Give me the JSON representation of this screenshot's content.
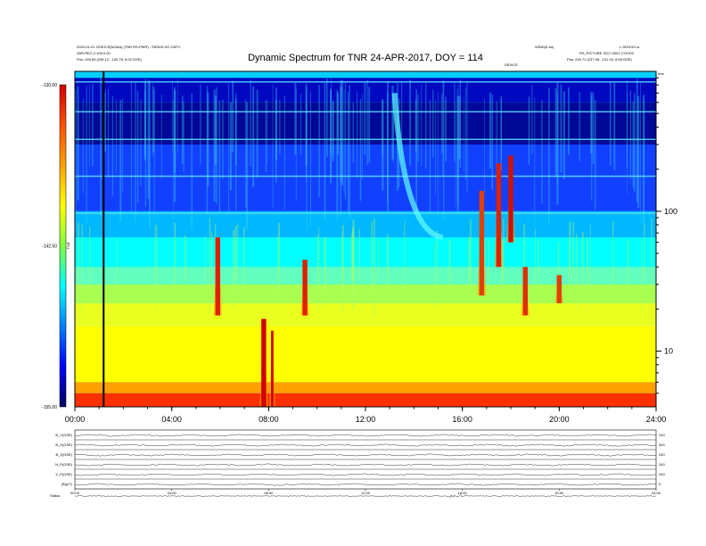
{
  "header": {
    "top_left_1": "2020-01-01 GOES-R(NOAA) (TNR RS-PWR) - SIRIUS.HC.GSFC",
    "top_left_2": "VAR-REC-2 v09.0.00",
    "top_left_3": "Pos:   245.59 (236.12, -100.78, 8.02 GSE)",
    "top_right_1": "WIND(0.4a)",
    "top_right_2": "L-SHOGO-a",
    "top_right_3": "RS_PICTURE 2017-0001 COOO2",
    "top_right_4": "Pos:   245.71 (237.08, -101.16, 8.58 GSE)",
    "center_small": "DEVICE",
    "corner_small": "kHz"
  },
  "chart_data": {
    "type": "heatmap",
    "title": "Dynamic Spectrum for TNR 24-APR-2017, DOY = 114",
    "x_ticks": [
      "00:00",
      "04:00",
      "08:00",
      "12:00",
      "16:00",
      "20:00",
      "24:00"
    ],
    "x_range_hours": [
      0,
      24
    ],
    "y_scale": "log",
    "y_ticks": [
      "100",
      "10"
    ],
    "y_tick_values": [
      100,
      10
    ],
    "y_range_khz": [
      4,
      1000
    ],
    "colorbar": {
      "ticks": [
        "-130.00",
        "-142.50",
        "-155.00"
      ],
      "tick_values": [
        -130,
        -142.5,
        -155
      ],
      "label": "TNR",
      "colors": [
        "#d00000",
        "#ff5000",
        "#ffa000",
        "#ffff00",
        "#80ff40",
        "#00ffff",
        "#0080ff",
        "#0000ff",
        "#000060"
      ]
    },
    "bands": [
      {
        "top_khz": 900,
        "bottom_khz": 600,
        "color": "#0008c0"
      },
      {
        "top_khz": 600,
        "bottom_khz": 300,
        "color": "#000898"
      },
      {
        "top_khz": 300,
        "bottom_khz": 100,
        "color": "#1240ff"
      },
      {
        "top_khz": 100,
        "bottom_khz": 65,
        "color": "#00b8ff"
      },
      {
        "top_khz": 65,
        "bottom_khz": 40,
        "color": "#00ffff"
      },
      {
        "top_khz": 40,
        "bottom_khz": 30,
        "color": "#60ffc0"
      },
      {
        "top_khz": 30,
        "bottom_khz": 22,
        "color": "#a8ff50"
      },
      {
        "top_khz": 22,
        "bottom_khz": 15,
        "color": "#e8ff20"
      },
      {
        "top_khz": 15,
        "bottom_khz": 6,
        "color": "#ffff00"
      },
      {
        "top_khz": 6,
        "bottom_khz": 5,
        "color": "#ffa000"
      },
      {
        "top_khz": 5,
        "bottom_khz": 4,
        "color": "#ff3000"
      }
    ],
    "bursts": [
      {
        "start_h": 5.8,
        "end_h": 6.0,
        "top_khz": 65,
        "bottom_khz": 18,
        "color": "#e02000"
      },
      {
        "start_h": 7.7,
        "end_h": 7.9,
        "top_khz": 17,
        "bottom_khz": 4,
        "color": "#d00000"
      },
      {
        "start_h": 8.1,
        "end_h": 8.2,
        "top_khz": 14,
        "bottom_khz": 4,
        "color": "#d00000"
      },
      {
        "start_h": 9.4,
        "end_h": 9.6,
        "top_khz": 45,
        "bottom_khz": 18,
        "color": "#e02000"
      },
      {
        "start_h": 16.7,
        "end_h": 16.9,
        "top_khz": 140,
        "bottom_khz": 25,
        "color": "#e04000"
      },
      {
        "start_h": 17.4,
        "end_h": 17.6,
        "top_khz": 220,
        "bottom_khz": 40,
        "color": "#e02000"
      },
      {
        "start_h": 17.9,
        "end_h": 18.1,
        "top_khz": 250,
        "bottom_khz": 60,
        "color": "#d01000"
      },
      {
        "start_h": 18.5,
        "end_h": 18.7,
        "top_khz": 40,
        "bottom_khz": 18,
        "color": "#e03000"
      },
      {
        "start_h": 19.9,
        "end_h": 20.1,
        "top_khz": 35,
        "bottom_khz": 22,
        "color": "#e04000"
      }
    ],
    "data_gap": {
      "start_h": 1.15,
      "end_h": 1.22,
      "color": "#000000"
    },
    "aux_panels": {
      "labels": [
        "B_Y(GSE)",
        "B_X(GSE)",
        "B_Z(GSE)",
        "N_P(GSE)",
        "V_P(GSE)",
        "|B|(nT)"
      ],
      "right_labels": [
        "240",
        "300",
        "240",
        "240",
        "240",
        "0"
      ],
      "x_ticks": [
        "00:00",
        "04:00",
        "08:00",
        "12:00",
        "16:00",
        "20:00",
        "24:00"
      ],
      "footer_label": "Status"
    }
  }
}
